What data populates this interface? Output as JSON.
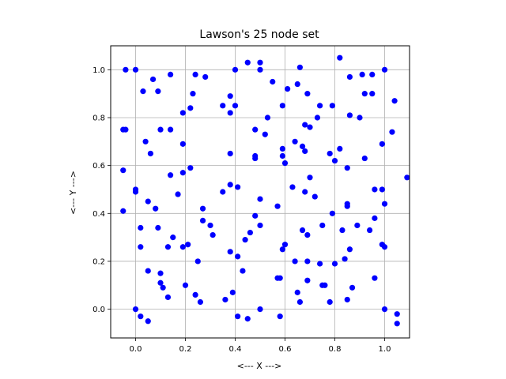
{
  "chart_data": {
    "type": "scatter",
    "title": "Lawson's 25 node set",
    "xlabel": "<--- X --->",
    "ylabel": "<--- Y --->",
    "xlim": [
      -0.1,
      1.1
    ],
    "ylim": [
      -0.12,
      1.1
    ],
    "xticks": [
      0.0,
      0.2,
      0.4,
      0.6,
      0.8,
      1.0
    ],
    "yticks": [
      0.0,
      0.2,
      0.4,
      0.6,
      0.8,
      1.0
    ],
    "xtick_labels": [
      "0.0",
      "0.2",
      "0.4",
      "0.6",
      "0.8",
      "1.0"
    ],
    "ytick_labels": [
      "0.0",
      "0.2",
      "0.4",
      "0.6",
      "0.8",
      "1.0"
    ],
    "grid": true,
    "marker_color": "#0000ff",
    "points": [
      [
        -0.04,
        1.0
      ],
      [
        0.0,
        1.0
      ],
      [
        0.03,
        0.91
      ],
      [
        0.07,
        0.96
      ],
      [
        0.09,
        0.91
      ],
      [
        0.14,
        0.98
      ],
      [
        0.24,
        0.98
      ],
      [
        0.28,
        0.97
      ],
      [
        0.4,
        1.0
      ],
      [
        0.45,
        1.03
      ],
      [
        0.5,
        1.03
      ],
      [
        0.5,
        1.0
      ],
      [
        0.55,
        0.95
      ],
      [
        0.61,
        0.92
      ],
      [
        0.65,
        0.94
      ],
      [
        0.66,
        1.01
      ],
      [
        0.69,
        0.9
      ],
      [
        0.74,
        0.85
      ],
      [
        0.79,
        0.85
      ],
      [
        0.82,
        1.05
      ],
      [
        0.86,
        0.97
      ],
      [
        0.91,
        0.98
      ],
      [
        0.95,
        0.98
      ],
      [
        1.0,
        1.0
      ],
      [
        0.92,
        0.9
      ],
      [
        0.95,
        0.9
      ],
      [
        1.04,
        0.87
      ],
      [
        0.86,
        0.81
      ],
      [
        0.9,
        0.8
      ],
      [
        -0.05,
        0.75
      ],
      [
        -0.04,
        0.75
      ],
      [
        0.04,
        0.7
      ],
      [
        0.06,
        0.65
      ],
      [
        0.1,
        0.75
      ],
      [
        0.14,
        0.75
      ],
      [
        0.19,
        0.82
      ],
      [
        0.22,
        0.84
      ],
      [
        0.23,
        0.9
      ],
      [
        0.35,
        0.85
      ],
      [
        0.38,
        0.89
      ],
      [
        0.38,
        0.82
      ],
      [
        0.4,
        0.85
      ],
      [
        0.53,
        0.8
      ],
      [
        0.52,
        0.73
      ],
      [
        0.48,
        0.75
      ],
      [
        0.59,
        0.85
      ],
      [
        0.64,
        0.7
      ],
      [
        0.67,
        0.68
      ],
      [
        0.68,
        0.77
      ],
      [
        0.7,
        0.76
      ],
      [
        0.73,
        0.8
      ],
      [
        0.68,
        0.66
      ],
      [
        0.78,
        0.65
      ],
      [
        0.82,
        0.67
      ],
      [
        0.8,
        0.62
      ],
      [
        0.85,
        0.59
      ],
      [
        0.92,
        0.63
      ],
      [
        0.99,
        0.69
      ],
      [
        1.03,
        0.74
      ],
      [
        -0.05,
        0.58
      ],
      [
        0.0,
        0.5
      ],
      [
        0.0,
        0.49
      ],
      [
        0.05,
        0.45
      ],
      [
        0.08,
        0.42
      ],
      [
        0.14,
        0.56
      ],
      [
        0.19,
        0.57
      ],
      [
        0.19,
        0.69
      ],
      [
        0.22,
        0.59
      ],
      [
        0.17,
        0.48
      ],
      [
        0.35,
        0.49
      ],
      [
        0.38,
        0.52
      ],
      [
        0.38,
        0.65
      ],
      [
        0.41,
        0.51
      ],
      [
        0.48,
        0.64
      ],
      [
        0.48,
        0.63
      ],
      [
        0.5,
        0.46
      ],
      [
        0.57,
        0.43
      ],
      [
        0.59,
        0.67
      ],
      [
        0.59,
        0.64
      ],
      [
        0.6,
        0.61
      ],
      [
        0.63,
        0.51
      ],
      [
        0.68,
        0.49
      ],
      [
        0.7,
        0.55
      ],
      [
        0.72,
        0.47
      ],
      [
        0.79,
        0.4
      ],
      [
        0.85,
        0.43
      ],
      [
        0.85,
        0.44
      ],
      [
        0.96,
        0.5
      ],
      [
        0.99,
        0.5
      ],
      [
        1.0,
        0.44
      ],
      [
        1.09,
        0.55
      ],
      [
        -0.05,
        0.41
      ],
      [
        0.02,
        0.34
      ],
      [
        0.02,
        0.26
      ],
      [
        0.09,
        0.34
      ],
      [
        0.13,
        0.26
      ],
      [
        0.15,
        0.3
      ],
      [
        0.19,
        0.26
      ],
      [
        0.21,
        0.27
      ],
      [
        0.27,
        0.42
      ],
      [
        0.27,
        0.37
      ],
      [
        0.3,
        0.35
      ],
      [
        0.31,
        0.31
      ],
      [
        0.38,
        0.24
      ],
      [
        0.41,
        0.22
      ],
      [
        0.44,
        0.29
      ],
      [
        0.46,
        0.32
      ],
      [
        0.48,
        0.39
      ],
      [
        0.5,
        0.35
      ],
      [
        0.59,
        0.25
      ],
      [
        0.6,
        0.27
      ],
      [
        0.64,
        0.2
      ],
      [
        0.67,
        0.33
      ],
      [
        0.69,
        0.31
      ],
      [
        0.69,
        0.2
      ],
      [
        0.74,
        0.19
      ],
      [
        0.75,
        0.35
      ],
      [
        0.8,
        0.19
      ],
      [
        0.83,
        0.33
      ],
      [
        0.84,
        0.21
      ],
      [
        0.86,
        0.25
      ],
      [
        0.89,
        0.35
      ],
      [
        0.94,
        0.33
      ],
      [
        0.96,
        0.38
      ],
      [
        0.99,
        0.27
      ],
      [
        1.0,
        0.26
      ],
      [
        0.05,
        0.16
      ],
      [
        0.1,
        0.15
      ],
      [
        0.1,
        0.11
      ],
      [
        0.11,
        0.09
      ],
      [
        0.13,
        0.05
      ],
      [
        0.2,
        0.1
      ],
      [
        0.24,
        0.06
      ],
      [
        0.25,
        0.2
      ],
      [
        0.26,
        0.03
      ],
      [
        0.36,
        0.04
      ],
      [
        0.39,
        0.07
      ],
      [
        0.41,
        -0.03
      ],
      [
        0.43,
        0.16
      ],
      [
        0.45,
        -0.04
      ],
      [
        0.5,
        0.0
      ],
      [
        0.57,
        0.13
      ],
      [
        0.58,
        0.13
      ],
      [
        0.58,
        -0.03
      ],
      [
        0.65,
        0.07
      ],
      [
        0.66,
        0.03
      ],
      [
        0.69,
        0.12
      ],
      [
        0.75,
        0.1
      ],
      [
        0.76,
        0.1
      ],
      [
        0.78,
        0.03
      ],
      [
        0.85,
        0.04
      ],
      [
        0.87,
        0.09
      ],
      [
        0.96,
        0.13
      ],
      [
        1.0,
        0.0
      ],
      [
        1.05,
        -0.02
      ],
      [
        1.05,
        -0.06
      ],
      [
        0.0,
        0.0
      ],
      [
        0.02,
        -0.03
      ],
      [
        0.05,
        -0.05
      ]
    ]
  }
}
